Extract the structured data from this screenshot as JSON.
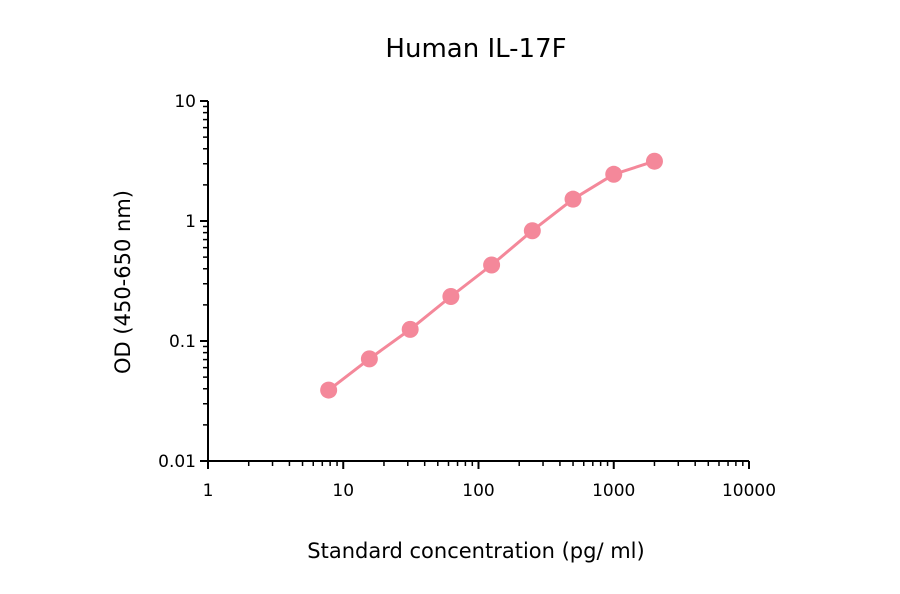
{
  "chart_data": {
    "type": "scatter",
    "title": "Human IL-17F",
    "xlabel": "Standard concentration (pg/ ml)",
    "ylabel": "OD (450-650 nm)",
    "xscale": "log",
    "yscale": "log",
    "xlim": [
      1,
      10000
    ],
    "ylim": [
      0.01,
      10
    ],
    "x_ticks": [
      1,
      10,
      100,
      1000,
      10000
    ],
    "x_tick_labels": [
      "1",
      "10",
      "100",
      "1000",
      "10000"
    ],
    "y_ticks": [
      0.01,
      0.1,
      1,
      10
    ],
    "y_tick_labels": [
      "0.01",
      "0.1",
      "1",
      "10"
    ],
    "grid": false,
    "legend": "none",
    "series": [
      {
        "color": "#f4889a",
        "x": [
          7.8,
          15.6,
          31.25,
          62.5,
          125,
          250,
          500,
          1000,
          2000
        ],
        "y": [
          0.039,
          0.071,
          0.125,
          0.235,
          0.43,
          0.83,
          1.52,
          2.45,
          3.15
        ]
      }
    ]
  }
}
